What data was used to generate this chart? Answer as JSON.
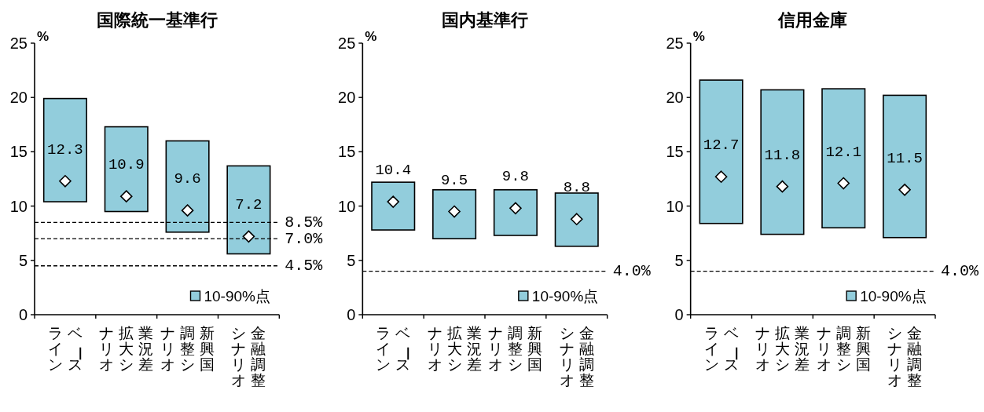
{
  "chart_data": [
    {
      "type": "bar",
      "title": "国際統一基準行",
      "ylabel": "%",
      "categories": [
        "ベースライン",
        "業況差拡大シナリオ",
        "新興国調整シナリオ",
        "金融調整シナリオ"
      ],
      "ylim": [
        0,
        25
      ],
      "yticks": [
        0,
        5,
        10,
        15,
        20,
        25
      ],
      "legend": "bottom right",
      "series": [
        {
          "name": "10-90%点",
          "color": "#92cddc",
          "base": [
            10.4,
            9.5,
            7.6,
            5.6
          ],
          "values": [
            9.5,
            7.8,
            8.4,
            8.1
          ]
        },
        {
          "type": "scatter",
          "color": "#ffffff",
          "marker": "diamond",
          "x": [
            "ベースライン",
            "業況差拡大シナリオ",
            "新興国調整シナリオ",
            "金融調整シナリオ"
          ],
          "values": [
            12.3,
            10.9,
            9.6,
            7.2
          ],
          "value_labels": [
            "12.3",
            "10.9",
            "9.6",
            "7.2"
          ]
        }
      ],
      "ref_lines": [
        {
          "axis": "y",
          "value": 8.5,
          "label": "8.5%",
          "color": "#000000",
          "line_style": "dashed"
        },
        {
          "axis": "y",
          "value": 7.0,
          "label": "7.0%",
          "color": "#000000",
          "line_style": "dashed"
        },
        {
          "axis": "y",
          "value": 4.5,
          "label": "4.5%",
          "color": "#000000",
          "line_style": "dashed"
        }
      ]
    },
    {
      "type": "bar",
      "title": "国内基準行",
      "ylabel": "%",
      "categories": [
        "ベースライン",
        "業況差拡大シナリオ",
        "新興国調整シナリオ",
        "金融調整シナリオ"
      ],
      "ylim": [
        0,
        25
      ],
      "yticks": [
        0,
        5,
        10,
        15,
        20,
        25
      ],
      "legend": "bottom right",
      "series": [
        {
          "name": "10-90%点",
          "color": "#92cddc",
          "base": [
            7.8,
            7.0,
            7.3,
            6.3
          ],
          "values": [
            4.4,
            4.5,
            4.2,
            4.9
          ]
        },
        {
          "type": "scatter",
          "color": "#ffffff",
          "marker": "diamond",
          "x": [
            "ベースライン",
            "業況差拡大シナリオ",
            "新興国調整シナリオ",
            "金融調整シナリオ"
          ],
          "values": [
            10.4,
            9.5,
            9.8,
            8.8
          ],
          "value_labels": [
            "10.4",
            "9.5",
            "9.8",
            "8.8"
          ]
        }
      ],
      "ref_lines": [
        {
          "axis": "y",
          "value": 4.0,
          "label": "4.0%",
          "color": "#000000",
          "line_style": "dashed"
        }
      ]
    },
    {
      "type": "bar",
      "title": "信用金庫",
      "ylabel": "%",
      "categories": [
        "ベースライン",
        "業況差拡大シナリオ",
        "新興国調整シナリオ",
        "金融調整シナリオ"
      ],
      "ylim": [
        0,
        25
      ],
      "yticks": [
        0,
        5,
        10,
        15,
        20,
        25
      ],
      "legend": "bottom right",
      "series": [
        {
          "name": "10-90%点",
          "color": "#92cddc",
          "base": [
            8.4,
            7.4,
            8.0,
            7.1
          ],
          "values": [
            13.2,
            13.3,
            12.8,
            13.1
          ]
        },
        {
          "type": "scatter",
          "color": "#ffffff",
          "marker": "diamond",
          "x": [
            "ベースライン",
            "業況差拡大シナリオ",
            "新興国調整シナリオ",
            "金融調整シナリオ"
          ],
          "values": [
            12.7,
            11.8,
            12.1,
            11.5
          ],
          "value_labels": [
            "12.7",
            "11.8",
            "12.1",
            "11.5"
          ]
        }
      ],
      "ref_lines": [
        {
          "axis": "y",
          "value": 4.0,
          "label": "4.0%",
          "color": "#000000",
          "line_style": "dashed"
        }
      ]
    }
  ]
}
